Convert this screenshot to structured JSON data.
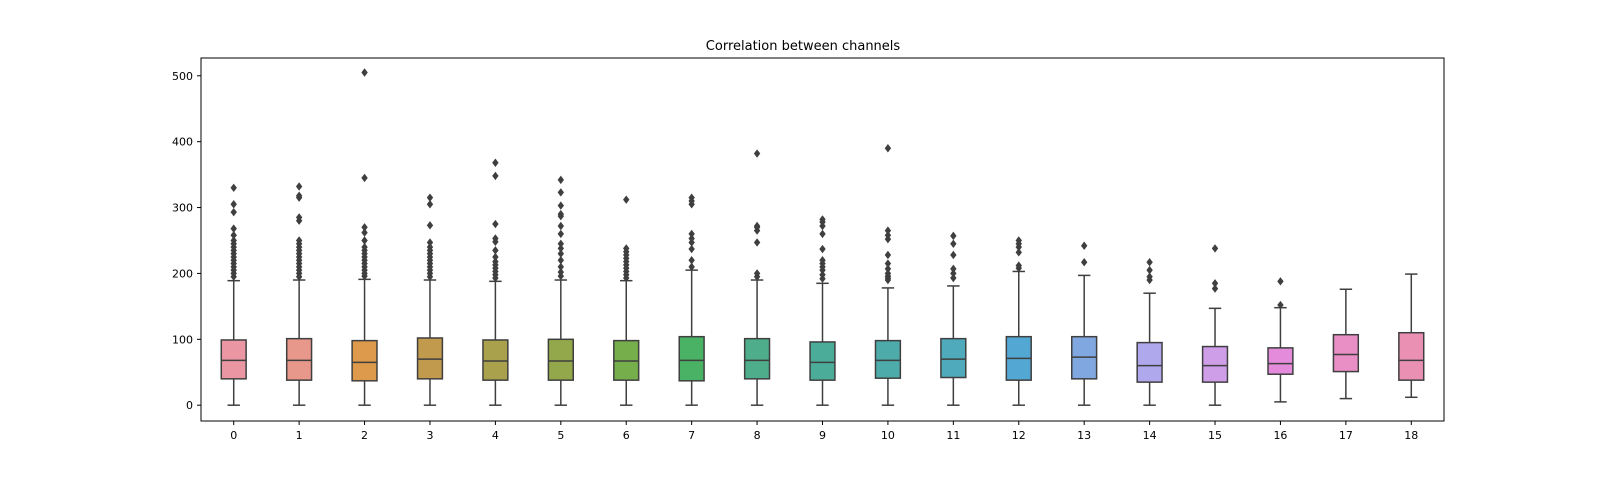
{
  "chart_data": {
    "type": "box",
    "title": "Correlation between channels",
    "xlabel": "",
    "ylabel": "",
    "ylim": [
      -24,
      527
    ],
    "yticks": [
      0,
      100,
      200,
      300,
      400,
      500
    ],
    "grid": false,
    "legend": "none",
    "categories": [
      "0",
      "1",
      "2",
      "3",
      "4",
      "5",
      "6",
      "7",
      "8",
      "9",
      "10",
      "11",
      "12",
      "13",
      "14",
      "15",
      "16",
      "17",
      "18"
    ],
    "boxes": [
      {
        "label": "0",
        "color": "#ea96a3",
        "whisker_low": 0,
        "q1": 40,
        "median": 68,
        "q3": 99,
        "whisker_high": 189,
        "outliers": [
          195,
          200,
          205,
          210,
          215,
          220,
          225,
          230,
          235,
          240,
          245,
          250,
          258,
          268,
          293,
          305,
          330
        ]
      },
      {
        "label": "1",
        "color": "#e8988a",
        "whisker_low": 0,
        "q1": 38,
        "median": 68,
        "q3": 101,
        "whisker_high": 190,
        "outliers": [
          195,
          200,
          205,
          210,
          215,
          220,
          225,
          230,
          235,
          240,
          245,
          250,
          280,
          285,
          315,
          318,
          332
        ]
      },
      {
        "label": "2",
        "color": "#dd9a4c",
        "whisker_low": 0,
        "q1": 37,
        "median": 65,
        "q3": 98,
        "whisker_high": 191,
        "outliers": [
          196,
          200,
          205,
          210,
          215,
          220,
          225,
          230,
          235,
          240,
          250,
          262,
          270,
          345,
          505
        ]
      },
      {
        "label": "3",
        "color": "#c29a4e",
        "whisker_low": 0,
        "q1": 40,
        "median": 70,
        "q3": 102,
        "whisker_high": 190,
        "outliers": [
          195,
          200,
          205,
          210,
          215,
          220,
          225,
          230,
          235,
          240,
          247,
          273,
          305,
          315
        ]
      },
      {
        "label": "4",
        "color": "#a9a14c",
        "whisker_low": 0,
        "q1": 38,
        "median": 67,
        "q3": 99,
        "whisker_high": 188,
        "outliers": [
          193,
          198,
          203,
          208,
          213,
          218,
          225,
          235,
          248,
          253,
          275,
          348,
          368
        ]
      },
      {
        "label": "5",
        "color": "#92a84b",
        "whisker_low": 0,
        "q1": 38,
        "median": 67,
        "q3": 100,
        "whisker_high": 190,
        "outliers": [
          196,
          202,
          210,
          220,
          230,
          238,
          245,
          260,
          272,
          287,
          290,
          303,
          323,
          342
        ]
      },
      {
        "label": "6",
        "color": "#76ae4b",
        "whisker_low": 0,
        "q1": 38,
        "median": 67,
        "q3": 98,
        "whisker_high": 189,
        "outliers": [
          193,
          198,
          203,
          208,
          213,
          218,
          223,
          228,
          233,
          238,
          312
        ]
      },
      {
        "label": "7",
        "color": "#4ab264",
        "whisker_low": 0,
        "q1": 37,
        "median": 68,
        "q3": 104,
        "whisker_high": 205,
        "outliers": [
          210,
          220,
          237,
          247,
          253,
          260,
          305,
          310,
          315
        ]
      },
      {
        "label": "8",
        "color": "#4eae8b",
        "whisker_low": 0,
        "q1": 40,
        "median": 68,
        "q3": 101,
        "whisker_high": 190,
        "outliers": [
          195,
          200,
          247,
          265,
          270,
          272,
          382
        ]
      },
      {
        "label": "9",
        "color": "#4cac9a",
        "whisker_low": 0,
        "q1": 38,
        "median": 65,
        "q3": 96,
        "whisker_high": 185,
        "outliers": [
          192,
          198,
          205,
          210,
          215,
          220,
          237,
          260,
          272,
          278,
          282
        ]
      },
      {
        "label": "10",
        "color": "#4daca9",
        "whisker_low": 0,
        "q1": 41,
        "median": 68,
        "q3": 98,
        "whisker_high": 178,
        "outliers": [
          190,
          193,
          196,
          200,
          207,
          215,
          228,
          252,
          258,
          265,
          390
        ]
      },
      {
        "label": "11",
        "color": "#4fabbb",
        "whisker_low": 0,
        "q1": 42,
        "median": 70,
        "q3": 101,
        "whisker_high": 181,
        "outliers": [
          193,
          200,
          207,
          228,
          245,
          257
        ]
      },
      {
        "label": "12",
        "color": "#53a8d3",
        "whisker_low": 0,
        "q1": 38,
        "median": 71,
        "q3": 104,
        "whisker_high": 203,
        "outliers": [
          208,
          212,
          232,
          240,
          245,
          250
        ]
      },
      {
        "label": "13",
        "color": "#80a7e0",
        "whisker_low": 0,
        "q1": 40,
        "median": 73,
        "q3": 104,
        "whisker_high": 197,
        "outliers": [
          217,
          242
        ]
      },
      {
        "label": "14",
        "color": "#b0a8ed",
        "whisker_low": 0,
        "q1": 35,
        "median": 60,
        "q3": 95,
        "whisker_high": 170,
        "outliers": [
          190,
          195,
          205,
          217
        ]
      },
      {
        "label": "15",
        "color": "#cf9ee9",
        "whisker_low": 0,
        "q1": 35,
        "median": 60,
        "q3": 89,
        "whisker_high": 147,
        "outliers": [
          177,
          185,
          238
        ]
      },
      {
        "label": "16",
        "color": "#e48bdc",
        "whisker_low": 5,
        "q1": 47,
        "median": 63,
        "q3": 87,
        "whisker_high": 148,
        "outliers": [
          152,
          188
        ]
      },
      {
        "label": "17",
        "color": "#e98fc6",
        "whisker_low": 10,
        "q1": 51,
        "median": 77,
        "q3": 107,
        "whisker_high": 176,
        "outliers": []
      },
      {
        "label": "18",
        "color": "#ea90b3",
        "whisker_low": 12,
        "q1": 38,
        "median": 68,
        "q3": 110,
        "whisker_high": 199,
        "outliers": []
      }
    ]
  }
}
